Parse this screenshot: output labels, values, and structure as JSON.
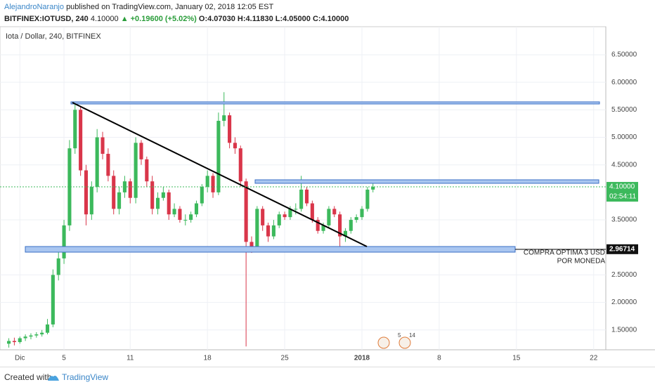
{
  "header": {
    "author": "AlejandroNaranjo",
    "published": "published on TradingView.com, January 02, 2018 12:05 EST",
    "symbol": "BITFINEX:IOTUSD, 240",
    "price": "4.10000",
    "change": "▲ +0.19600 (+5.02%)",
    "ohlc": "O:4.07030 H:4.11830 L:4.05000 C:4.10000"
  },
  "footer": {
    "created": "Created with",
    "brand": "TradingView"
  },
  "chart_data": {
    "type": "candlestick",
    "title": "Iota / Dollar, 240, BITFINEX",
    "up_color": "#3cb95c",
    "down_color": "#d9364a",
    "xlim": [
      -0.8,
      54.1
    ],
    "xticks": [
      {
        "value": 1,
        "label": "Dic"
      },
      5,
      11,
      18,
      25,
      {
        "value": 32,
        "label": "2018"
      },
      {
        "value": 39,
        "label": "8"
      },
      {
        "value": 46,
        "label": "15"
      },
      {
        "value": 53,
        "label": "22"
      }
    ],
    "ylim": [
      1.14,
      7.01
    ],
    "yticks": [
      {
        "value": 1.5,
        "label": "1.50000"
      },
      {
        "value": 2,
        "label": "2.00000"
      },
      {
        "value": 2.5,
        "label": "2.50000"
      },
      {
        "value": 3.5,
        "label": "3.50000"
      },
      {
        "value": 4.5,
        "label": "4.50000"
      },
      {
        "value": 5,
        "label": "5.00000"
      },
      {
        "value": 5.5,
        "label": "5.50000"
      },
      {
        "value": 6,
        "label": "6.00000"
      },
      {
        "value": 6.5,
        "label": "6.50000"
      }
    ],
    "grid": true,
    "last_price": {
      "value": 4.1,
      "label": "4.10000",
      "countdown": "02:54:11"
    },
    "level": {
      "value": 2.96714,
      "label": "2.96714"
    },
    "annotation": [
      "COMPRA OPTIMA 3 USD",
      "POR MONEDA"
    ],
    "events": [
      "5",
      "14"
    ],
    "x": [
      0,
      0.5,
      1,
      1.5,
      2,
      2.5,
      3,
      3.5,
      4,
      4.5,
      5,
      5.5,
      6,
      6.5,
      7,
      7.5,
      8,
      8.5,
      9,
      9.5,
      10,
      10.5,
      11,
      11.5,
      12,
      12.5,
      13,
      13.5,
      14,
      14.5,
      15,
      15.5,
      16,
      16.5,
      17,
      17.5,
      18,
      18.5,
      19,
      19.5,
      20,
      20.5,
      21,
      21.5,
      22,
      22.5,
      23,
      23.5,
      24,
      24.5,
      25,
      25.5,
      26,
      26.5,
      27,
      27.5,
      28,
      28.5,
      29,
      29.5,
      30,
      30.5,
      31,
      31.5,
      32,
      32.5,
      33
    ],
    "open": [
      1.25,
      1.3,
      1.28,
      1.35,
      1.38,
      1.4,
      1.42,
      1.45,
      1.6,
      2.5,
      2.8,
      3.4,
      4.8,
      5.5,
      4.4,
      3.6,
      4.1,
      5.0,
      4.7,
      4.3,
      3.7,
      4.0,
      4.2,
      3.9,
      4.9,
      4.6,
      4.2,
      3.7,
      3.9,
      4.0,
      3.6,
      3.7,
      3.5,
      3.5,
      3.6,
      3.8,
      4.1,
      4.3,
      4.0,
      5.3,
      5.4,
      4.9,
      4.8,
      4.2,
      3.1,
      3.0,
      3.7,
      3.4,
      3.2,
      3.4,
      3.6,
      3.55,
      3.7,
      3.7,
      4.05,
      3.8,
      3.5,
      3.3,
      3.4,
      3.7,
      3.6,
      3.2,
      3.3,
      3.5,
      3.55,
      3.7,
      4.05
    ],
    "high": [
      1.35,
      1.36,
      1.38,
      1.42,
      1.44,
      1.46,
      1.5,
      1.7,
      2.6,
      2.95,
      3.5,
      4.95,
      5.62,
      5.55,
      4.5,
      4.2,
      5.15,
      5.1,
      4.8,
      4.4,
      4.1,
      4.3,
      4.25,
      5.0,
      4.95,
      4.65,
      4.3,
      4.0,
      4.1,
      4.05,
      3.8,
      3.75,
      3.6,
      3.65,
      3.85,
      4.15,
      4.4,
      4.35,
      5.45,
      5.82,
      5.45,
      5.0,
      4.85,
      4.25,
      3.2,
      3.75,
      3.75,
      3.45,
      3.5,
      3.65,
      3.65,
      3.75,
      3.8,
      4.3,
      4.1,
      3.85,
      3.55,
      3.45,
      3.75,
      3.75,
      3.65,
      3.35,
      3.55,
      3.6,
      3.75,
      4.1,
      4.22
    ],
    "low": [
      1.18,
      1.22,
      1.25,
      1.3,
      1.33,
      1.36,
      1.38,
      1.42,
      1.55,
      2.4,
      2.7,
      3.3,
      4.7,
      4.3,
      3.4,
      3.5,
      4.0,
      4.6,
      4.2,
      3.6,
      3.6,
      3.9,
      3.8,
      3.8,
      4.5,
      4.1,
      3.6,
      3.6,
      3.85,
      3.5,
      3.55,
      3.45,
      3.4,
      3.45,
      3.55,
      3.75,
      4.0,
      3.9,
      3.95,
      5.2,
      4.8,
      4.7,
      4.1,
      1.2,
      2.9,
      2.95,
      3.3,
      3.1,
      3.15,
      3.35,
      3.5,
      3.5,
      3.6,
      3.65,
      3.75,
      3.45,
      3.25,
      3.25,
      3.35,
      3.55,
      2.95,
      3.1,
      3.25,
      3.45,
      3.5,
      3.65,
      4.0
    ],
    "close": [
      1.3,
      1.28,
      1.35,
      1.38,
      1.4,
      1.42,
      1.45,
      1.6,
      2.5,
      2.8,
      3.4,
      4.8,
      5.5,
      4.4,
      3.6,
      4.1,
      5.0,
      4.7,
      4.3,
      3.7,
      4.0,
      4.2,
      3.9,
      4.9,
      4.6,
      4.2,
      3.7,
      3.9,
      4.0,
      3.6,
      3.7,
      3.5,
      3.5,
      3.6,
      3.8,
      4.1,
      4.3,
      4.0,
      5.3,
      5.4,
      4.9,
      4.8,
      4.2,
      3.1,
      3.0,
      3.7,
      3.4,
      3.2,
      3.4,
      3.6,
      3.55,
      3.7,
      3.7,
      4.05,
      3.8,
      3.5,
      3.3,
      3.4,
      3.7,
      3.6,
      3.2,
      3.3,
      3.5,
      3.55,
      3.7,
      4.05,
      4.1
    ]
  }
}
